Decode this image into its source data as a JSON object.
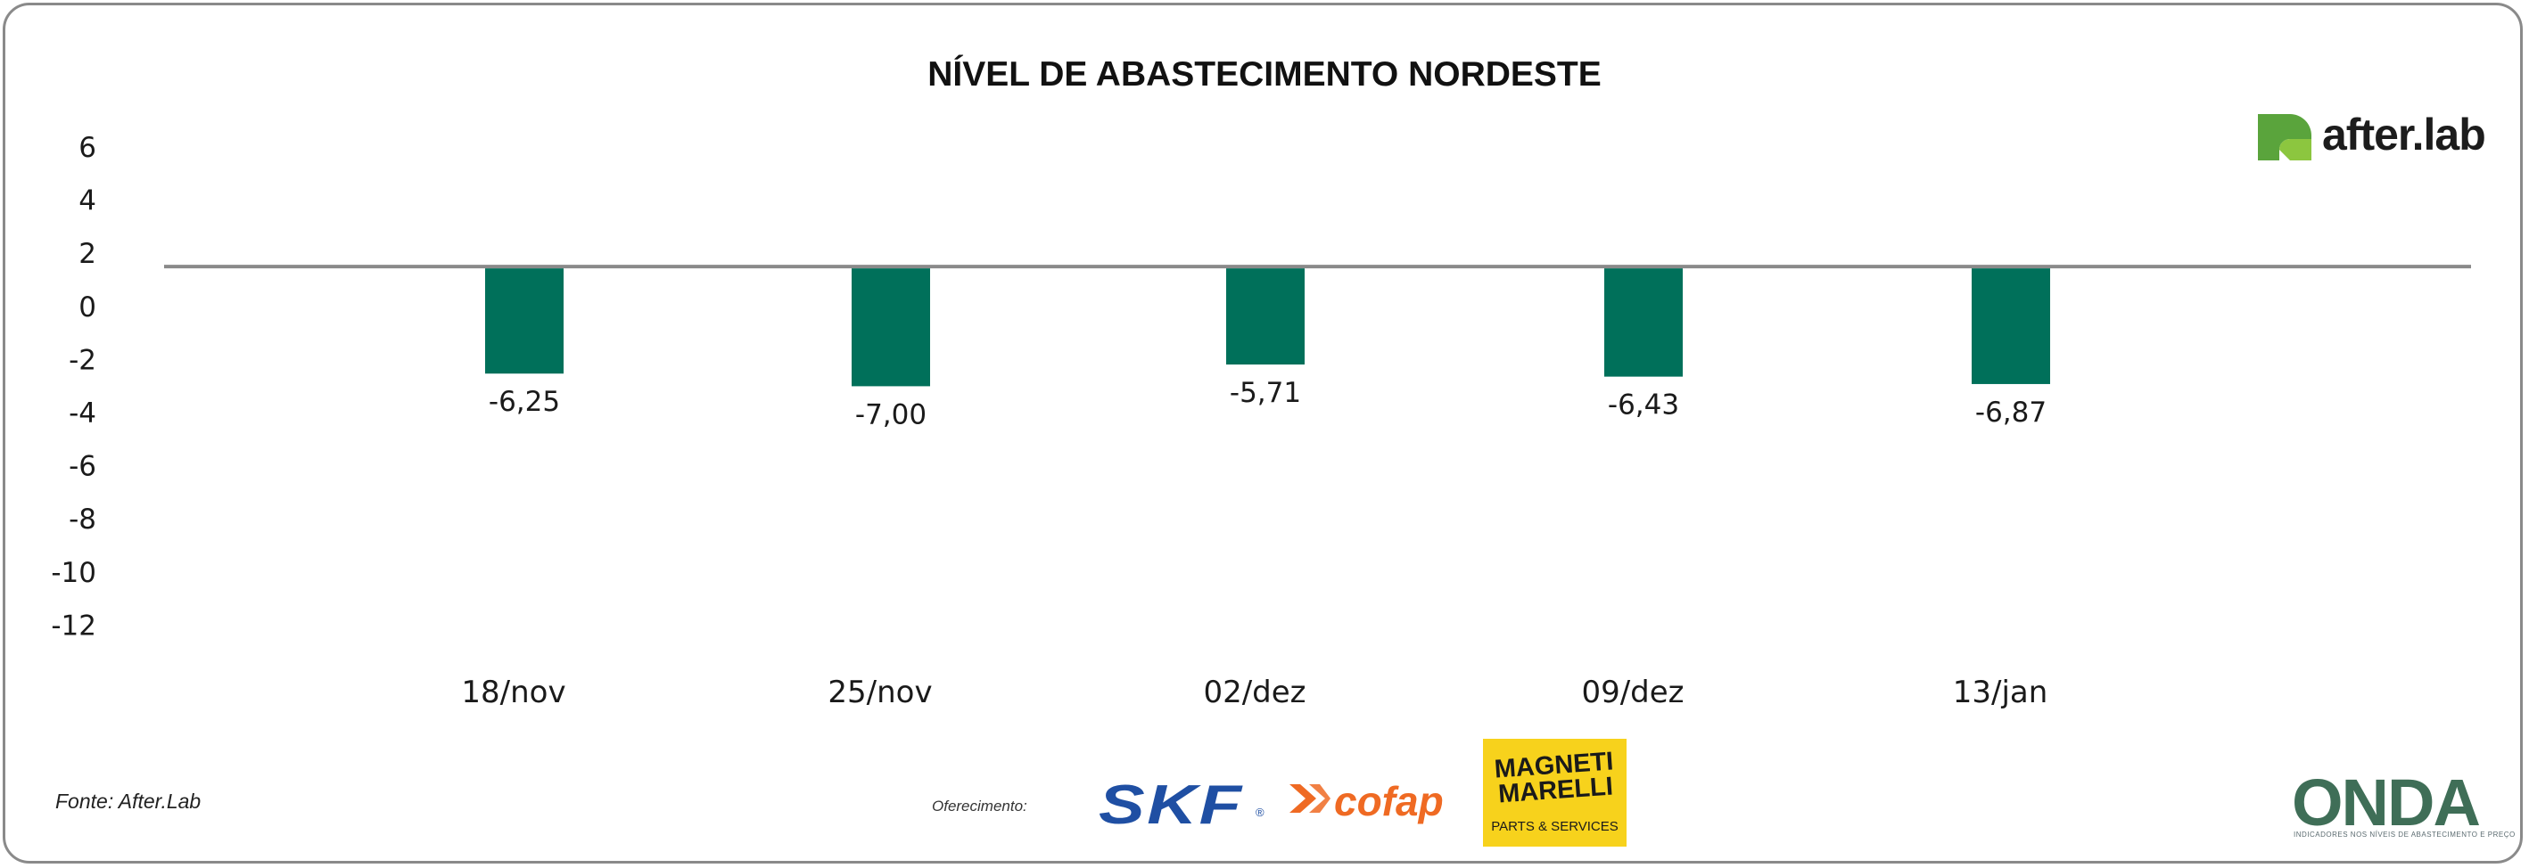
{
  "chart_data": {
    "type": "bar",
    "title": "NÍVEL DE ABASTECIMENTO NORDESTE",
    "categories": [
      "18/nov",
      "25/nov",
      "02/dez",
      "09/dez",
      "13/jan"
    ],
    "values": [
      -6.25,
      -7.0,
      -5.71,
      -6.43,
      -6.87
    ],
    "value_labels": [
      "-6,25",
      "-7,00",
      "-5,71",
      "-6,43",
      "-6,87"
    ],
    "yticks": [
      6,
      4,
      2,
      0,
      -2,
      -4,
      -6,
      -8,
      -10,
      -12
    ],
    "ytick_labels": [
      "6",
      "4",
      "2",
      "0",
      "-2",
      "-4",
      "-6",
      "-8",
      "-10",
      "-12"
    ],
    "ylim": [
      -12,
      6
    ],
    "baseline": 1.5,
    "grid": false,
    "legend": "none",
    "bar_color": "#00705a",
    "axis_line_color": "#8a8a8a"
  },
  "footer": {
    "source": "Fonte: After.Lab",
    "offer_label": "Oferecimento:"
  },
  "logos": {
    "after_lab": "after.lab",
    "skf": "SKF",
    "cofap": "cofap",
    "magneti_line1": "MAGNETI",
    "magneti_line2": "MARELLI",
    "magneti_sub": "PARTS & SERVICES",
    "onda": "ONDA",
    "onda_sub": "INDICADORES NOS NÍVEIS DE ABASTECIMENTO E PREÇO"
  }
}
